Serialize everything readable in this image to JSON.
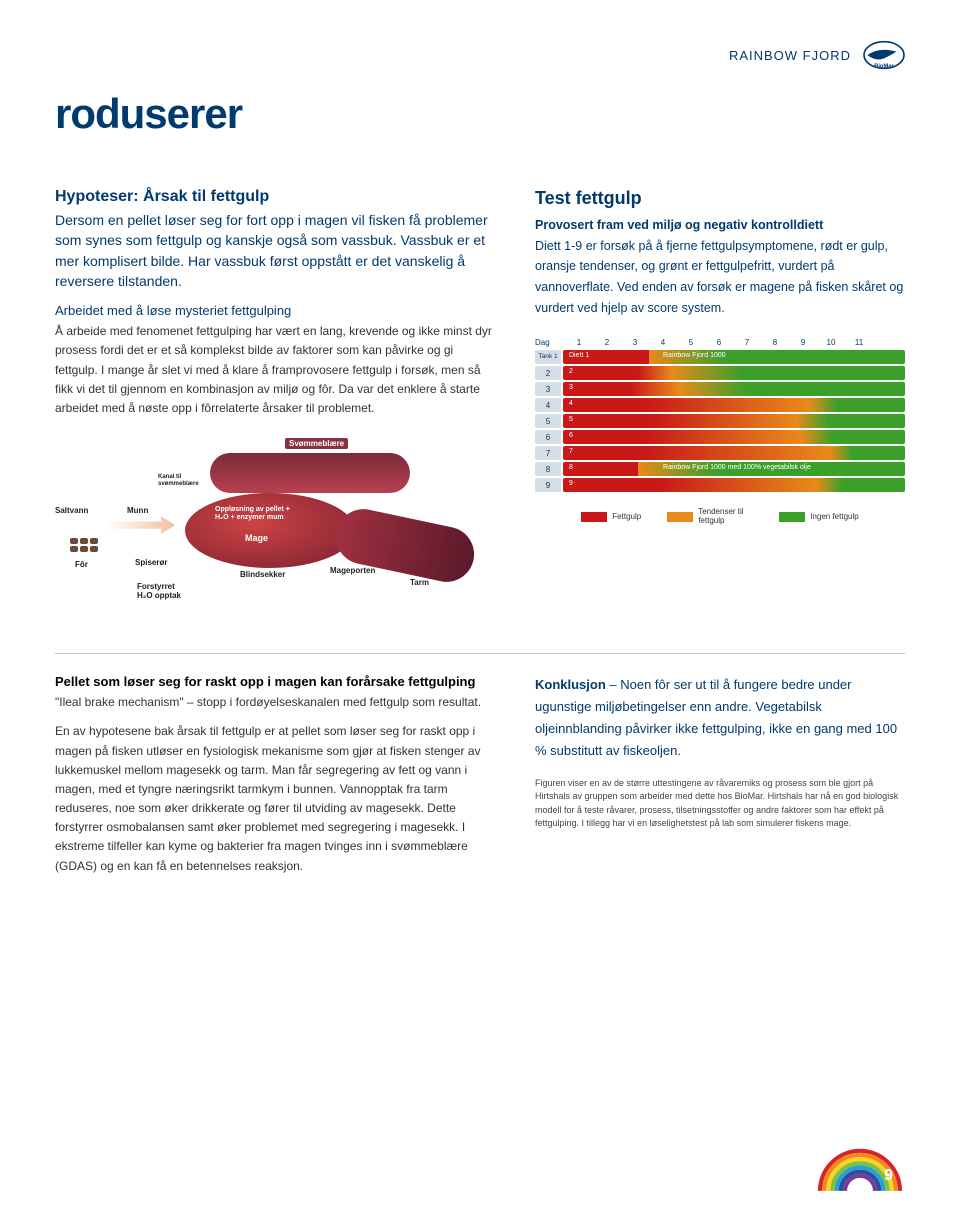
{
  "header": {
    "brand": "RAINBOW FJORD",
    "logo_text": "BioMar"
  },
  "title": "roduserer",
  "left": {
    "sub_head": "Hypoteser: Årsak til fettgulp",
    "intro": "Dersom en pellet løser seg for fort opp i magen vil fisken få problemer som synes som fettgulp og kanskje også som vassbuk. Vassbuk er et mer komplisert bilde. Har vassbuk først oppstått er det vanskelig å reversere tilstanden.",
    "section_title": "Arbeidet med å løse mysteriet fettgulping",
    "body": "Å arbeide med fenomenet fettgulping har vært en lang, krevende og ikke minst dyr prosess fordi det er et så komplekst bilde av faktorer som kan påvirke og gi fettgulp. I mange år slet vi med å klare å framprovosere fettgulp i forsøk, men så fikk vi det til gjennom en kombinasjon av miljø og fôr. Da var det enklere å starte arbeidet med å nøste opp i fôrrelaterte årsaker til problemet."
  },
  "right": {
    "head": "Test fettgulp",
    "sub": "Provosert fram ved miljø og negativ kontrolldiett",
    "body": "Diett 1-9 er forsøk på å fjerne fettgulpsymptomene, rødt er gulp, oransje tendenser, og grønt er fettgulpefritt, vurdert på vannoverflate. Ved enden av forsøk er magene på fisken skåret og vurdert ved hjelp av score system."
  },
  "diagram": {
    "swim_bladder": "Svømmeblære",
    "saltwater": "Saltvann",
    "mouth": "Munn",
    "feed": "Fôr",
    "esophagus": "Spiserør",
    "channel": "Kanal til svømmeblære",
    "dissolve": "Oppløsning av pellet + H₂O + enzymer mum",
    "stomach": "Mage",
    "blind": "Blindsekker",
    "pylorus": "Mageporten",
    "intestine": "Tarm",
    "disturbed": "Forstyrret H₂O opptak",
    "colors": {
      "organ_dark": "#7b2030",
      "organ_mid": "#b84050",
      "organ_light": "#c44"
    }
  },
  "chart": {
    "day_label": "Dag",
    "tank_label": "Tank",
    "days": [
      "1",
      "2",
      "3",
      "4",
      "5",
      "6",
      "7",
      "8",
      "9",
      "10",
      "11"
    ],
    "tanks": [
      "1",
      "2",
      "3",
      "4",
      "5",
      "6",
      "7",
      "8",
      "9"
    ],
    "row_label_1": "Diett 1",
    "row_label_rb": "Rainbow Fjord 1000",
    "row_label_8": "Rainbow Fjord 1000 med 100% vegetabilsk olje",
    "colors": {
      "red": "#c81818",
      "orange": "#e88a1a",
      "green": "#3aa02a",
      "blue": "#003a6e",
      "header_bg": "#d7dde5"
    },
    "rows": [
      {
        "red": 25,
        "orange": 0,
        "green": 75,
        "first": "1"
      },
      {
        "red": 22,
        "orange": 10,
        "green": 68,
        "first": "2"
      },
      {
        "red": 20,
        "orange": 14,
        "green": 66,
        "first": "3"
      },
      {
        "red": 24,
        "orange": 48,
        "green": 28,
        "first": "4"
      },
      {
        "red": 26,
        "orange": 42,
        "green": 32,
        "first": "5"
      },
      {
        "red": 24,
        "orange": 46,
        "green": 30,
        "first": "6"
      },
      {
        "red": 23,
        "orange": 55,
        "green": 22,
        "first": "7"
      },
      {
        "red": 22,
        "orange": 0,
        "green": 78,
        "first": "8"
      },
      {
        "red": 28,
        "orange": 46,
        "green": 26,
        "first": "9"
      }
    ],
    "legend": [
      {
        "label": "Fettgulp",
        "color": "#c81818"
      },
      {
        "label": "Tendenser til fettgulp",
        "color": "#e88a1a"
      },
      {
        "label": "Ingen fettgulp",
        "color": "#3aa02a"
      }
    ]
  },
  "bottom_left": {
    "title": "Pellet som løser seg for raskt opp i magen kan forårsake fettgulping",
    "p1": "\"Ileal brake mechanism\" – stopp i fordøyelseskanalen med fettgulp som resultat.",
    "p2": "En av hypotesene bak årsak til fettgulp er at pellet som løser seg for raskt opp i magen på fisken utløser en fysiologisk mekanisme som gjør at fisken stenger av lukkemuskel mellom magesekk og tarm. Man får segregering av fett og vann i magen, med et tyngre næringsrikt tarmkym i bunnen. Vannopptak fra tarm reduseres, noe som øker drikkerate og fører til utviding av magesekk. Dette forstyrrer osmobalansen samt øker problemet med segregering i magesekk. I ekstreme tilfeller kan kyme og bakterier fra magen tvinges inn i svømmeblære (GDAS) og en kan få en betennelses reaksjon."
  },
  "bottom_right": {
    "p1_prefix": "Konklusjon",
    "p1": " – Noen fôr ser ut til å fungere bedre under ugunstige miljøbetingelser enn andre. Vegetabilsk oljeinnblanding påvirker ikke fettgulping, ikke en gang med 100 % substitutt av fiskeoljen.",
    "caption": "Figuren viser en av de større uttestingene av råvaremiks og prosess som ble gjort på Hirtshals av gruppen som arbeider med dette hos BioMar. Hirtshals har nå en god biologisk modell for å teste råvarer, prosess, tilsetningsstoffer og andre faktorer som har effekt på fettgulping. I tillegg har vi en løselighetstest på lab som simulerer fiskens mage."
  },
  "page_number": "9",
  "rainbow_colors": [
    "#d9232a",
    "#f08a1f",
    "#f9d224",
    "#7cc242",
    "#2a9ed6",
    "#2a4ea0",
    "#7b3a96"
  ]
}
